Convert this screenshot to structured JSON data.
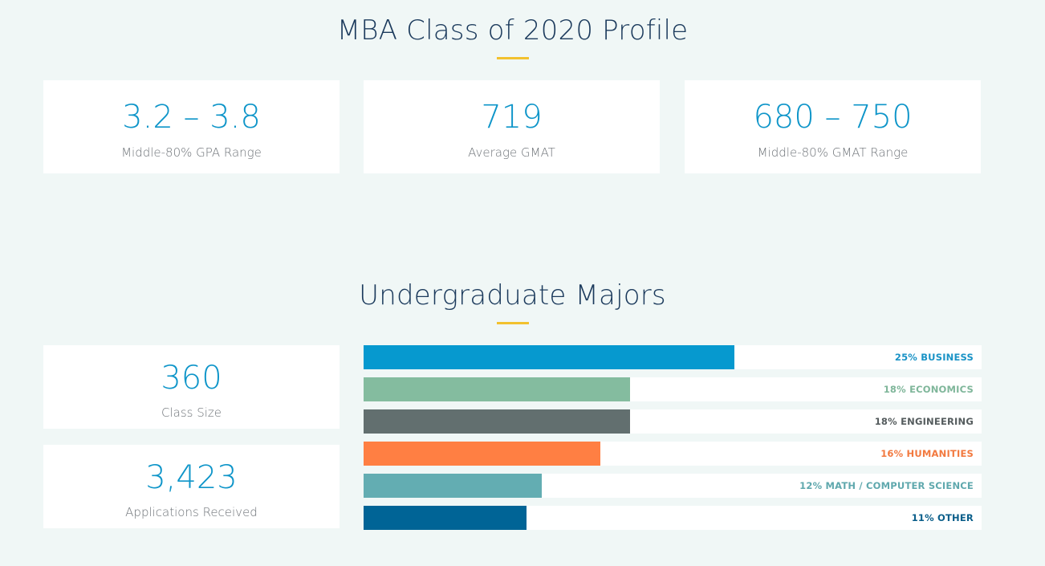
{
  "profile": {
    "title": "MBA Class of 2020 Profile",
    "stats": [
      {
        "value": "3.2 – 3.8",
        "label": "Middle-80% GPA Range"
      },
      {
        "value": "719",
        "label": "Average GMAT"
      },
      {
        "value": "680 – 750",
        "label": "Middle-80% GMAT Range"
      }
    ]
  },
  "majors": {
    "title": "Undergraduate Majors",
    "stats": [
      {
        "value": "360",
        "label": "Class Size"
      },
      {
        "value": "3,423",
        "label": "Applications Received"
      }
    ]
  },
  "chart_data": {
    "type": "bar",
    "orientation": "horizontal",
    "title": "Undergraduate Majors",
    "xlim": [
      0,
      41.7
    ],
    "categories": [
      "BUSINESS",
      "ECONOMICS",
      "ENGINEERING",
      "HUMANITIES",
      "MATH / COMPUTER SCIENCE",
      "OTHER"
    ],
    "values": [
      25,
      18,
      18,
      16,
      12,
      11
    ],
    "labels": [
      "25% BUSINESS",
      "18% ECONOMICS",
      "18% ENGINEERING",
      "16% HUMANITIES",
      "12% MATH / COMPUTER SCIENCE",
      "11% OTHER"
    ],
    "bar_colors": [
      "#0699cf",
      "#84bc9f",
      "#626f6f",
      "#ff7f43",
      "#63adb2",
      "#006496"
    ],
    "label_colors": [
      "#1a93c6",
      "#7fb69a",
      "#555c5e",
      "#f2793f",
      "#5fa8ad",
      "#0a5e8a"
    ]
  }
}
